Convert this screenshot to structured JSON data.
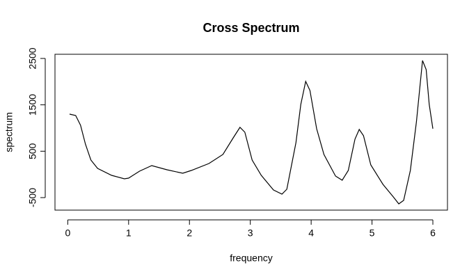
{
  "chart_data": {
    "type": "line",
    "title": "Cross Spectrum",
    "x_label": "frequency",
    "y_label": "spectrum",
    "x": [
      0.03,
      0.13,
      0.21,
      0.29,
      0.38,
      0.49,
      0.72,
      0.93,
      1.0,
      1.18,
      1.38,
      1.63,
      1.89,
      2.03,
      2.32,
      2.55,
      2.72,
      2.83,
      2.91,
      3.03,
      3.18,
      3.38,
      3.52,
      3.6,
      3.75,
      3.83,
      3.91,
      3.98,
      4.09,
      4.21,
      4.4,
      4.51,
      4.61,
      4.72,
      4.79,
      4.86,
      4.98,
      5.18,
      5.35,
      5.44,
      5.52,
      5.63,
      5.73,
      5.83,
      5.89,
      5.94,
      6.0
    ],
    "values": [
      1300,
      1270,
      1060,
      655,
      310,
      130,
      -20,
      -95,
      -80,
      70,
      190,
      100,
      25,
      85,
      235,
      430,
      790,
      1015,
      910,
      310,
      -20,
      -335,
      -425,
      -320,
      685,
      1510,
      2005,
      1810,
      985,
      430,
      -35,
      -125,
      85,
      760,
      970,
      835,
      205,
      -215,
      -485,
      -635,
      -560,
      85,
      1135,
      2455,
      2260,
      1510,
      985
    ],
    "color": "#000000",
    "xlim": [
      -0.21,
      6.24
    ],
    "xticks": [
      0,
      1,
      2,
      3,
      4,
      5,
      6
    ],
    "ylim": [
      -770,
      2590
    ],
    "yticks": [
      -500,
      500,
      1500,
      2500
    ]
  }
}
